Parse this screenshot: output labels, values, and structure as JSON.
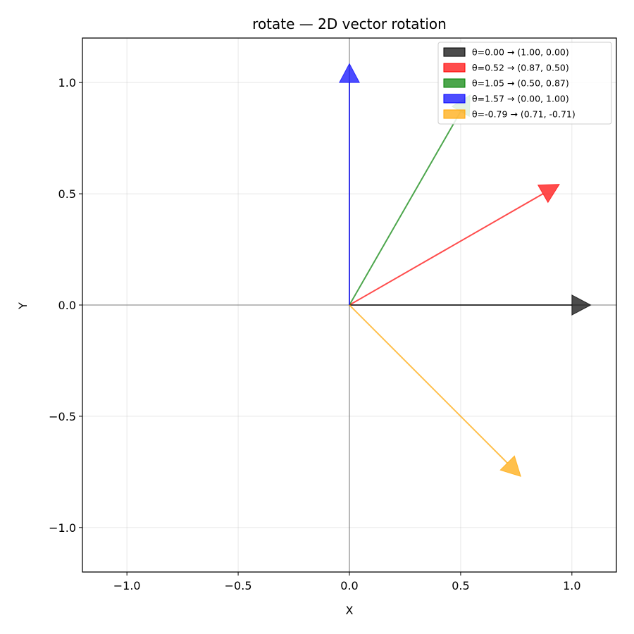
{
  "chart_data": {
    "type": "vector",
    "title": "rotate — 2D vector rotation",
    "xlabel": "X",
    "ylabel": "Y",
    "xlim": [
      -1.2,
      1.2
    ],
    "ylim": [
      -1.2,
      1.2
    ],
    "xticks": [
      -1.0,
      -0.5,
      0.0,
      0.5,
      1.0
    ],
    "yticks": [
      -1.0,
      -0.5,
      0.0,
      0.5,
      1.0
    ],
    "xtick_labels": [
      "−1.0",
      "−0.5",
      "0.0",
      "0.5",
      "1.0"
    ],
    "ytick_labels": [
      "−1.0",
      "−0.5",
      "0.0",
      "0.5",
      "1.0"
    ],
    "grid": true,
    "legend_position": "upper-right",
    "series": [
      {
        "name": "θ=0.00  →  (1.00, 0.00)",
        "theta": 0.0,
        "x": 1.0,
        "y": 0.0,
        "color": "#000000"
      },
      {
        "name": "θ=0.52  →  (0.87, 0.50)",
        "theta": 0.52,
        "x": 0.87,
        "y": 0.5,
        "color": "#ff0000"
      },
      {
        "name": "θ=1.05  →  (0.50, 0.87)",
        "theta": 1.05,
        "x": 0.5,
        "y": 0.87,
        "color": "#008000"
      },
      {
        "name": "θ=1.57  →  (0.00, 1.00)",
        "theta": 1.57,
        "x": 0.0,
        "y": 1.0,
        "color": "#0000ff"
      },
      {
        "name": "θ=-0.79  →  (0.71, -0.71)",
        "theta": -0.79,
        "x": 0.71,
        "y": -0.71,
        "color": "#ffa500"
      }
    ]
  }
}
